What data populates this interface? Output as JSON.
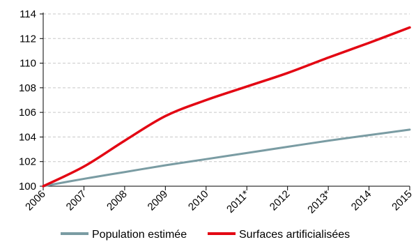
{
  "chart_data": {
    "type": "line",
    "title": "",
    "xlabel": "",
    "ylabel": "",
    "categories": [
      "2006",
      "2007",
      "2008",
      "2009",
      "2010",
      "2011*",
      "2012",
      "2013*",
      "2014",
      "2015"
    ],
    "ylim": [
      100,
      114
    ],
    "yticks": [
      "100",
      "102",
      "104",
      "106",
      "108",
      "110",
      "112",
      "114"
    ],
    "grid": "horizontal dashed",
    "legend_position": "bottom",
    "series": [
      {
        "name": "Population estimée",
        "color": "#7a9ca3",
        "values": [
          100,
          100.6,
          101.15,
          101.7,
          102.2,
          102.7,
          103.2,
          103.7,
          104.15,
          104.6
        ]
      },
      {
        "name": "Surfaces artificialisées",
        "color": "#e30613",
        "values": [
          100,
          101.6,
          103.7,
          105.7,
          107.0,
          108.1,
          109.2,
          110.45,
          111.65,
          112.9
        ]
      }
    ]
  }
}
